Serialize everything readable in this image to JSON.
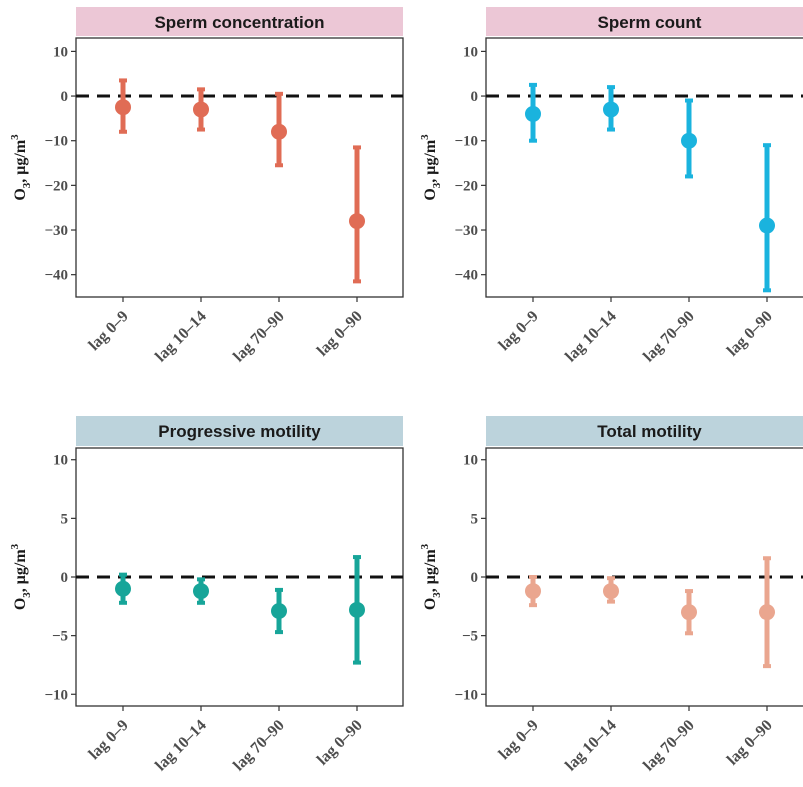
{
  "chart_data": [
    {
      "type": "errorbar",
      "title": "Sperm concentration",
      "strip_color": "#ecc7d6",
      "color": "#e06c55",
      "ylabel": "O3, μg/m3",
      "ylim": [
        -45,
        13
      ],
      "yticks": [
        10,
        0,
        -10,
        -20,
        -30,
        -40
      ],
      "ytick_labels": [
        "10",
        "0",
        "−10",
        "−20",
        "−30",
        "−40"
      ],
      "reference_line": 0,
      "categories": [
        "lag 0–9",
        "lag 10–14",
        "lag 70–90",
        "lag 0–90"
      ],
      "estimate": [
        -2.5,
        -3,
        -8,
        -28
      ],
      "lower": [
        -8,
        -7.5,
        -15.5,
        -41.5
      ],
      "upper": [
        3.5,
        1.5,
        0.5,
        -11.5
      ]
    },
    {
      "type": "errorbar",
      "title": "Sperm count",
      "strip_color": "#ecc7d6",
      "color": "#1ab3de",
      "ylabel": "O3, μg/m3",
      "ylim": [
        -45,
        13
      ],
      "yticks": [
        10,
        0,
        -10,
        -20,
        -30,
        -40
      ],
      "ytick_labels": [
        "10",
        "0",
        "−10",
        "−20",
        "−30",
        "−40"
      ],
      "reference_line": 0,
      "categories": [
        "lag 0–9",
        "lag 10–14",
        "lag 70–90",
        "lag 0–90"
      ],
      "estimate": [
        -4,
        -3,
        -10,
        -29
      ],
      "lower": [
        -10,
        -7.5,
        -18,
        -43.5
      ],
      "upper": [
        2.5,
        2,
        -1,
        -11
      ]
    },
    {
      "type": "errorbar",
      "title": "Progressive motility",
      "strip_color": "#bcd3dc",
      "color": "#17a599",
      "ylabel": "O3, μg/m3",
      "ylim": [
        -11,
        11
      ],
      "yticks": [
        10,
        5,
        0,
        -5,
        -10
      ],
      "ytick_labels": [
        "10",
        "5",
        "0",
        "−5",
        "−10"
      ],
      "reference_line": 0,
      "categories": [
        "lag 0–9",
        "lag 10–14",
        "lag 70–90",
        "lag 0–90"
      ],
      "estimate": [
        -1,
        -1.2,
        -2.9,
        -2.8
      ],
      "lower": [
        -2.2,
        -2.2,
        -4.7,
        -7.3
      ],
      "upper": [
        0.2,
        -0.2,
        -1.1,
        1.7
      ]
    },
    {
      "type": "errorbar",
      "title": "Total motility",
      "strip_color": "#bcd3dc",
      "color": "#eaa68f",
      "ylabel": "O3, μg/m3",
      "ylim": [
        -11,
        11
      ],
      "yticks": [
        10,
        5,
        0,
        -5,
        -10
      ],
      "ytick_labels": [
        "10",
        "5",
        "0",
        "−5",
        "−10"
      ],
      "reference_line": 0,
      "categories": [
        "lag 0–9",
        "lag 10–14",
        "lag 70–90",
        "lag 0–90"
      ],
      "estimate": [
        -1.2,
        -1.2,
        -3,
        -3
      ],
      "lower": [
        -2.4,
        -2.1,
        -4.8,
        -7.6
      ],
      "upper": [
        0,
        -0.1,
        -1.2,
        1.6
      ]
    }
  ]
}
